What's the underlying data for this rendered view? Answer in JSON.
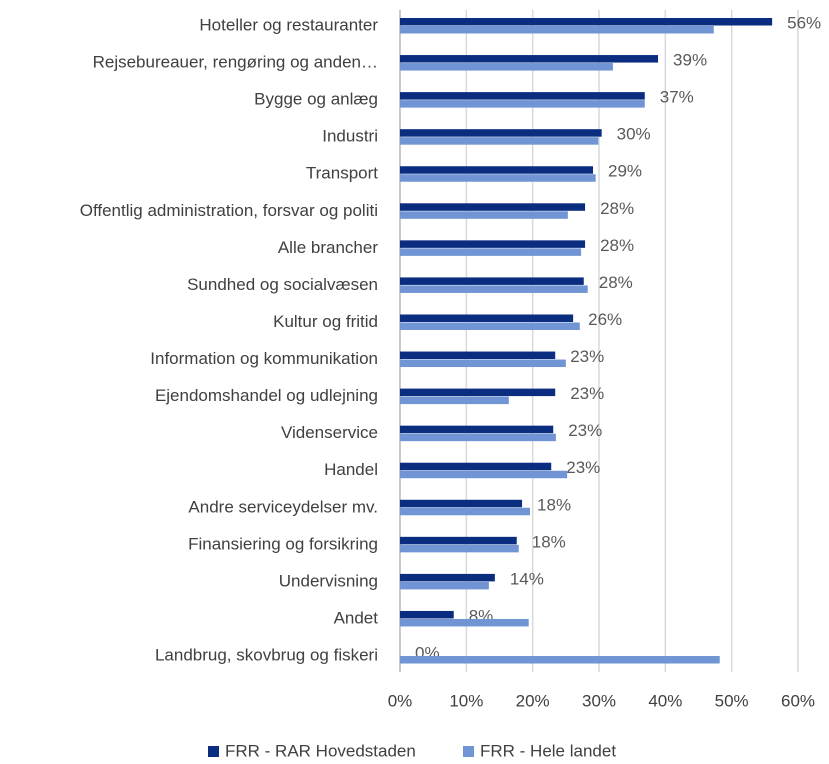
{
  "chart_data": {
    "type": "bar",
    "orientation": "horizontal",
    "categories": [
      "Hoteller og restauranter",
      "Rejsebureauer, rengøring og anden…",
      "Bygge og anlæg",
      "Industri",
      "Transport",
      "Offentlig administration, forsvar og politi",
      "Alle brancher",
      "Sundhed og socialvæsen",
      "Kultur og fritid",
      "Information og kommunikation",
      "Ejendomshandel og udlejning",
      "Videnservice",
      "Handel",
      "Andre serviceydelser mv.",
      "Finansiering og forsikring",
      "Undervisning",
      "Andet",
      "Landbrug, skovbrug og fiskeri"
    ],
    "series": [
      {
        "name": "FRR - RAR Hovedstaden",
        "color": "#0b2d80",
        "values": [
          56.1,
          38.9,
          36.9,
          30.4,
          29.1,
          27.9,
          27.9,
          27.7,
          26.1,
          23.4,
          23.4,
          23.1,
          22.8,
          18.4,
          17.6,
          14.3,
          8.1,
          0
        ],
        "value_labels": [
          "56%",
          "39%",
          "37%",
          "30%",
          "29%",
          "28%",
          "28%",
          "28%",
          "26%",
          "23%",
          "23%",
          "23%",
          "23%",
          "18%",
          "18%",
          "14%",
          "8%",
          "0%"
        ]
      },
      {
        "name": "FRR - Hele landet",
        "color": "#7094d4",
        "values": [
          47.3,
          32.1,
          36.9,
          29.9,
          29.5,
          25.3,
          27.3,
          28.3,
          27.1,
          25.0,
          16.4,
          23.5,
          25.2,
          19.6,
          17.9,
          13.4,
          19.4,
          48.2
        ]
      }
    ],
    "xlim": [
      0,
      60
    ],
    "xticks": [
      {
        "value": 0,
        "label": "0%"
      },
      {
        "value": 10,
        "label": "10%"
      },
      {
        "value": 20,
        "label": "20%"
      },
      {
        "value": 30,
        "label": "30%"
      },
      {
        "value": 40,
        "label": "40%"
      },
      {
        "value": 50,
        "label": "50%"
      },
      {
        "value": 60,
        "label": "60%"
      }
    ],
    "grid": true,
    "legend": "bottom"
  }
}
